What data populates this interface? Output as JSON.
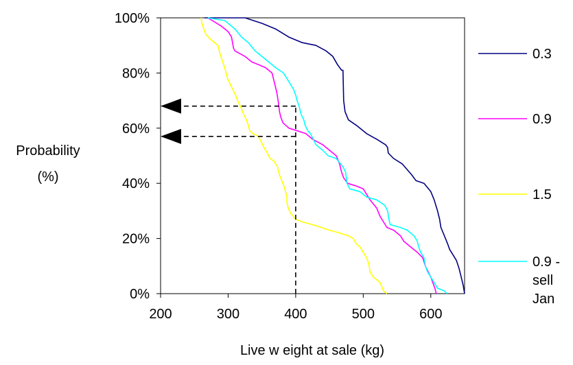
{
  "chart_data": {
    "type": "line",
    "xlabel": "Live w eight at sale (kg)",
    "ylabel": [
      "Probability",
      "(%)"
    ],
    "xlim": [
      200,
      650
    ],
    "ylim": [
      0,
      100
    ],
    "x_ticks": [
      200,
      300,
      400,
      500,
      600
    ],
    "x_tick_labels": [
      "200",
      "300",
      "400",
      "500",
      "600"
    ],
    "y_ticks": [
      0,
      20,
      40,
      60,
      80,
      100
    ],
    "y_tick_labels": [
      "0%",
      "20%",
      "40%",
      "60%",
      "80%",
      "100%"
    ],
    "grid": false,
    "legend_position": "right",
    "series": [
      {
        "name": "0.3",
        "color": "#000080",
        "points": [
          [
            265,
            100
          ],
          [
            300,
            100
          ],
          [
            325,
            100
          ],
          [
            350,
            98
          ],
          [
            370,
            96
          ],
          [
            390,
            93
          ],
          [
            410,
            91
          ],
          [
            430,
            90
          ],
          [
            445,
            88
          ],
          [
            455,
            86
          ],
          [
            462,
            83
          ],
          [
            468,
            81
          ],
          [
            470,
            81
          ],
          [
            471,
            70
          ],
          [
            473,
            66
          ],
          [
            478,
            63
          ],
          [
            490,
            61
          ],
          [
            505,
            58
          ],
          [
            520,
            56
          ],
          [
            533,
            54
          ],
          [
            536,
            53
          ],
          [
            537,
            51
          ],
          [
            545,
            49
          ],
          [
            558,
            47
          ],
          [
            565,
            45
          ],
          [
            572,
            43
          ],
          [
            578,
            41
          ],
          [
            590,
            40
          ],
          [
            600,
            37
          ],
          [
            605,
            34
          ],
          [
            610,
            30
          ],
          [
            613,
            27
          ],
          [
            615,
            24
          ],
          [
            620,
            21
          ],
          [
            625,
            18
          ],
          [
            628,
            16
          ],
          [
            633,
            14
          ],
          [
            638,
            12
          ],
          [
            642,
            9
          ],
          [
            645,
            6
          ],
          [
            648,
            3
          ],
          [
            650,
            0
          ]
        ]
      },
      {
        "name": "0.9",
        "color": "#ff00ff",
        "points": [
          [
            270,
            100
          ],
          [
            290,
            97
          ],
          [
            300,
            95
          ],
          [
            305,
            93
          ],
          [
            308,
            89
          ],
          [
            310,
            88
          ],
          [
            325,
            86
          ],
          [
            335,
            84
          ],
          [
            345,
            83
          ],
          [
            355,
            82
          ],
          [
            365,
            80
          ],
          [
            368,
            77
          ],
          [
            372,
            73
          ],
          [
            374,
            70
          ],
          [
            376,
            66
          ],
          [
            378,
            64
          ],
          [
            381,
            62
          ],
          [
            390,
            60
          ],
          [
            403,
            59
          ],
          [
            415,
            58
          ],
          [
            425,
            56
          ],
          [
            440,
            54
          ],
          [
            450,
            52
          ],
          [
            460,
            50
          ],
          [
            465,
            47
          ],
          [
            468,
            44
          ],
          [
            471,
            42
          ],
          [
            477,
            40
          ],
          [
            490,
            39
          ],
          [
            500,
            38
          ],
          [
            505,
            36
          ],
          [
            510,
            34
          ],
          [
            520,
            31
          ],
          [
            525,
            28
          ],
          [
            530,
            26
          ],
          [
            535,
            24
          ],
          [
            545,
            23
          ],
          [
            555,
            21
          ],
          [
            560,
            19
          ],
          [
            570,
            17
          ],
          [
            580,
            15
          ],
          [
            588,
            13
          ],
          [
            592,
            10
          ],
          [
            596,
            8
          ],
          [
            600,
            6
          ],
          [
            603,
            4
          ],
          [
            606,
            2
          ],
          [
            608,
            0
          ]
        ]
      },
      {
        "name": "1.5",
        "color": "#ffff00",
        "points": [
          [
            260,
            100
          ],
          [
            261,
            98
          ],
          [
            264,
            96
          ],
          [
            267,
            94
          ],
          [
            275,
            92
          ],
          [
            285,
            90
          ],
          [
            288,
            87
          ],
          [
            292,
            84
          ],
          [
            296,
            81
          ],
          [
            299,
            78
          ],
          [
            303,
            76
          ],
          [
            307,
            74
          ],
          [
            311,
            72
          ],
          [
            314,
            70
          ],
          [
            318,
            68
          ],
          [
            323,
            65
          ],
          [
            327,
            63
          ],
          [
            330,
            61
          ],
          [
            332,
            59
          ],
          [
            337,
            58
          ],
          [
            345,
            57
          ],
          [
            349,
            55
          ],
          [
            353,
            53
          ],
          [
            358,
            51
          ],
          [
            362,
            49
          ],
          [
            368,
            48
          ],
          [
            373,
            46
          ],
          [
            376,
            43
          ],
          [
            381,
            40
          ],
          [
            384,
            38
          ],
          [
            387,
            35
          ],
          [
            387,
            33
          ],
          [
            389,
            31
          ],
          [
            393,
            29
          ],
          [
            400,
            27
          ],
          [
            410,
            26
          ],
          [
            425,
            25
          ],
          [
            438,
            24
          ],
          [
            450,
            23
          ],
          [
            465,
            22
          ],
          [
            478,
            21
          ],
          [
            485,
            20
          ],
          [
            490,
            18
          ],
          [
            495,
            17
          ],
          [
            500,
            15
          ],
          [
            505,
            13
          ],
          [
            508,
            11
          ],
          [
            510,
            8
          ],
          [
            515,
            6
          ],
          [
            520,
            5
          ],
          [
            525,
            4
          ],
          [
            530,
            1
          ],
          [
            535,
            0
          ]
        ]
      },
      {
        "name": "0.9 - sell Jan",
        "color": "#00ffff",
        "points": [
          [
            270,
            100
          ],
          [
            295,
            99
          ],
          [
            310,
            96
          ],
          [
            320,
            93
          ],
          [
            330,
            91
          ],
          [
            340,
            88
          ],
          [
            350,
            86
          ],
          [
            360,
            84
          ],
          [
            370,
            82
          ],
          [
            382,
            80
          ],
          [
            387,
            78
          ],
          [
            392,
            76
          ],
          [
            397,
            74
          ],
          [
            400,
            72
          ],
          [
            402,
            70
          ],
          [
            405,
            68
          ],
          [
            408,
            65
          ],
          [
            412,
            63
          ],
          [
            414,
            61
          ],
          [
            418,
            59
          ],
          [
            422,
            58
          ],
          [
            426,
            56
          ],
          [
            430,
            54
          ],
          [
            440,
            52
          ],
          [
            448,
            50
          ],
          [
            460,
            49
          ],
          [
            470,
            46
          ],
          [
            474,
            44
          ],
          [
            475,
            42
          ],
          [
            476,
            40
          ],
          [
            480,
            38
          ],
          [
            495,
            37
          ],
          [
            505,
            35
          ],
          [
            520,
            34
          ],
          [
            532,
            32
          ],
          [
            536,
            30
          ],
          [
            538,
            27
          ],
          [
            540,
            25
          ],
          [
            555,
            24
          ],
          [
            565,
            23
          ],
          [
            575,
            21
          ],
          [
            580,
            19
          ],
          [
            582,
            17
          ],
          [
            585,
            15
          ],
          [
            590,
            13
          ],
          [
            592,
            10
          ],
          [
            595,
            8
          ],
          [
            600,
            6
          ],
          [
            605,
            4
          ],
          [
            610,
            2
          ],
          [
            620,
            1
          ],
          [
            624,
            0
          ]
        ]
      }
    ],
    "annotations": {
      "vertical_guide_x": 400,
      "arrows": [
        {
          "y": 68,
          "from_x": 400,
          "to_x": 200
        },
        {
          "y": 57,
          "from_x": 400,
          "to_x": 200
        }
      ]
    }
  }
}
